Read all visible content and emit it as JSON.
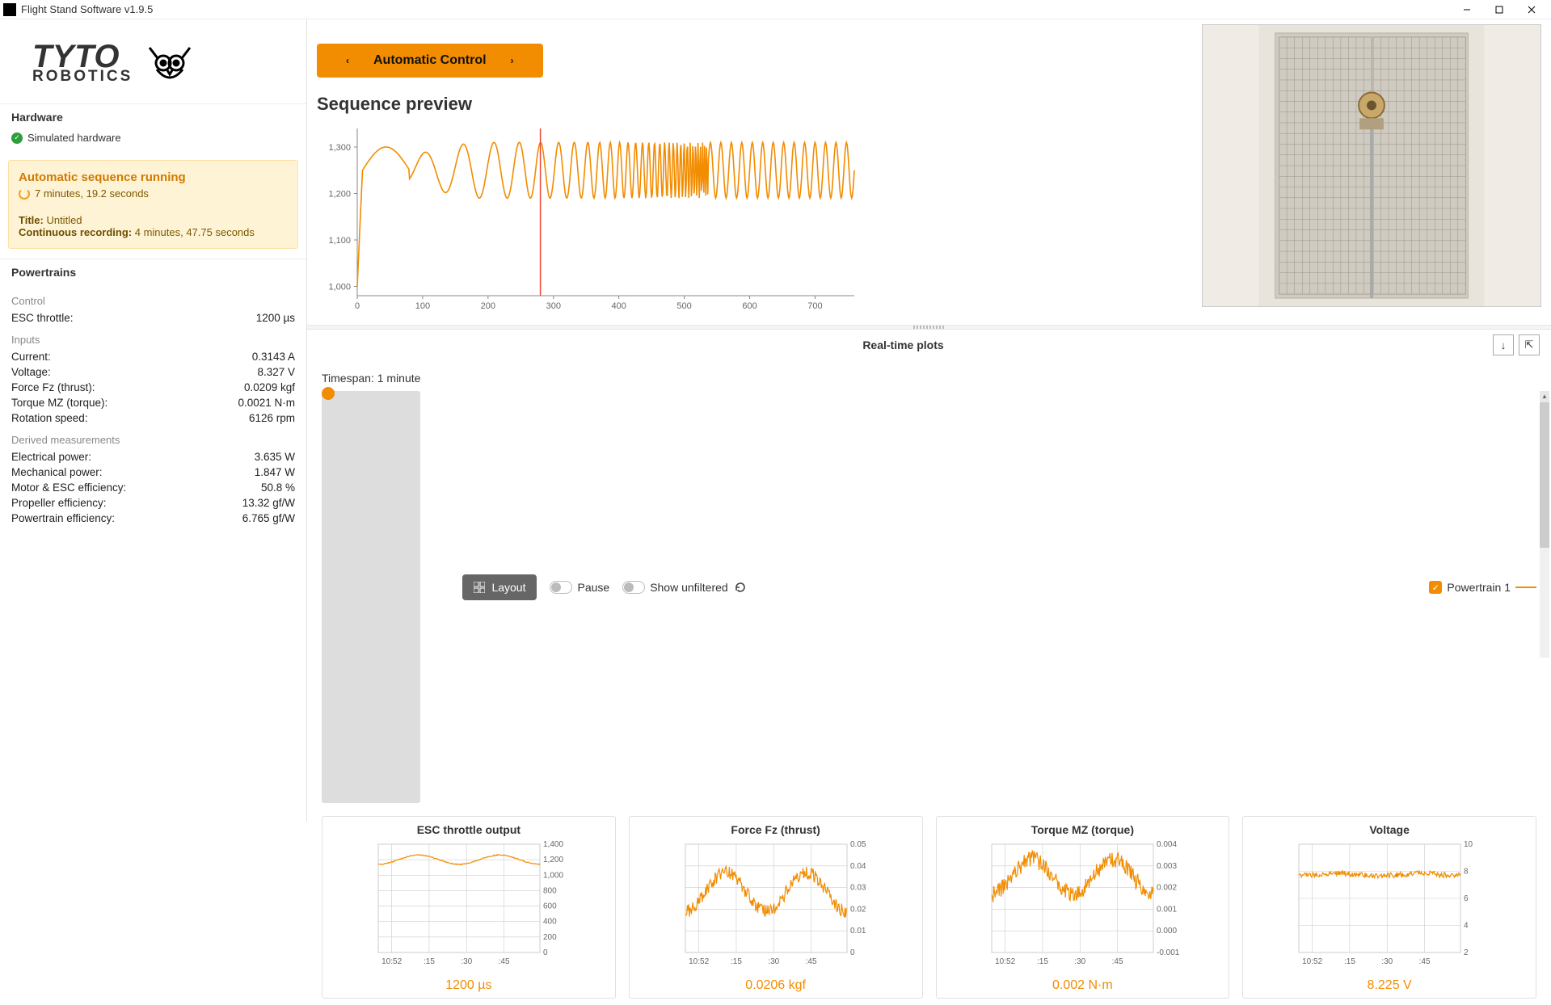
{
  "window": {
    "title": "Flight Stand Software v1.9.5"
  },
  "logo": {
    "line1": "TYTO",
    "line2": "ROBOTICS"
  },
  "sidebar": {
    "hardware_h": "Hardware",
    "hw_status": "Simulated hardware",
    "seq": {
      "header": "Automatic sequence running",
      "elapsed": "7 minutes, 19.2 seconds",
      "title_label": "Title:",
      "title_value": "Untitled",
      "rec_label": "Continuous recording:",
      "rec_value": "4 minutes, 47.75 seconds"
    },
    "powertrains_h": "Powertrains",
    "control_h": "Control",
    "control": [
      {
        "k": "ESC throttle:",
        "v": "1200 µs"
      }
    ],
    "inputs_h": "Inputs",
    "inputs": [
      {
        "k": "Current:",
        "v": "0.3143 A"
      },
      {
        "k": "Voltage:",
        "v": "8.327 V"
      },
      {
        "k": "Force Fz (thrust):",
        "v": "0.0209 kgf"
      },
      {
        "k": "Torque MZ (torque):",
        "v": "0.0021 N·m"
      },
      {
        "k": "Rotation speed:",
        "v": "6126 rpm"
      }
    ],
    "derived_h": "Derived measurements",
    "derived": [
      {
        "k": "Electrical power:",
        "v": "3.635 W"
      },
      {
        "k": "Mechanical power:",
        "v": "1.847 W"
      },
      {
        "k": "Motor & ESC efficiency:",
        "v": "50.8 %"
      },
      {
        "k": "Propeller efficiency:",
        "v": "13.32 gf/W"
      },
      {
        "k": "Powertrain efficiency:",
        "v": "6.765 gf/W"
      }
    ]
  },
  "mode_button": "Automatic Control",
  "sequence_preview": {
    "title": "Sequence preview",
    "chart": {
      "type": "line",
      "x_range": [
        0,
        760
      ],
      "xticks": [
        0,
        100,
        200,
        300,
        400,
        500,
        600,
        700
      ],
      "yticks": [
        1000,
        1100,
        1200,
        1300
      ],
      "ylim": [
        980,
        1340
      ],
      "line_color": "#f28c00",
      "cursor_x": 280,
      "cursor_color": "#e43",
      "axis_color": "#888",
      "label_fontsize": 11,
      "background": "#ffffff"
    }
  },
  "realtime": {
    "header": "Real-time plots",
    "timespan_label": "Timespan: 1 minute",
    "layout_btn": "Layout",
    "pause_label": "Pause",
    "unfiltered_label": "Show unfiltered",
    "legend": "Powertrain 1",
    "plots": [
      {
        "title": "ESC throttle output",
        "value": "1200 µs",
        "yticks": [
          "0",
          "200",
          "400",
          "600",
          "800",
          "1,000",
          "1,200",
          "1,400"
        ],
        "ylim": [
          0,
          1400
        ],
        "baseline": 1200,
        "amp": 60,
        "noise": 6,
        "xticks": [
          "10:52",
          ":15",
          ":30",
          ":45"
        ]
      },
      {
        "title": "Force Fz (thrust)",
        "value": "0.0206 kgf",
        "yticks": [
          "0",
          "0.01",
          "0.02",
          "0.03",
          "0.04",
          "0.05"
        ],
        "ylim": [
          0,
          0.05
        ],
        "baseline": 0.028,
        "amp": 0.009,
        "noise": 0.003,
        "xticks": [
          "10:52",
          ":15",
          ":30",
          ":45"
        ]
      },
      {
        "title": "Torque MZ (torque)",
        "value": "0.002 N·m",
        "yticks": [
          "-0.001",
          "0.000",
          "0.001",
          "0.002",
          "0.003",
          "0.004"
        ],
        "ylim": [
          -0.001,
          0.004
        ],
        "baseline": 0.0025,
        "amp": 0.0008,
        "noise": 0.0004,
        "xticks": [
          "10:52",
          ":15",
          ":30",
          ":45"
        ]
      },
      {
        "title": "Voltage",
        "value": "8.225 V",
        "yticks": [
          "2",
          "4",
          "6",
          "8",
          "10"
        ],
        "ylim": [
          1,
          11
        ],
        "baseline": 8.2,
        "amp": 0.1,
        "noise": 0.25,
        "xticks": [
          "10:52",
          ":15",
          ":30",
          ":45"
        ]
      }
    ],
    "accent": "#f28c00",
    "grid_color": "#ccc",
    "axis_color": "#888"
  }
}
